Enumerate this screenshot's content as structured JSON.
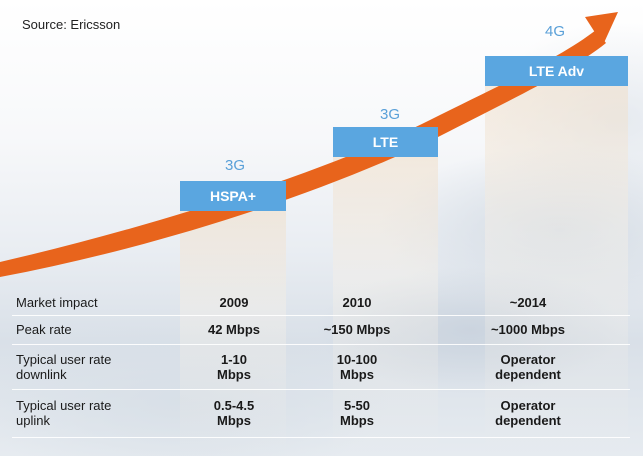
{
  "source": "Source: Ericsson",
  "stages": [
    {
      "generation": "3G",
      "technology": "HSPA+"
    },
    {
      "generation": "3G",
      "technology": "LTE"
    },
    {
      "generation": "4G",
      "technology": "LTE Adv"
    }
  ],
  "table": {
    "rows": [
      {
        "label": "Market impact",
        "values": [
          "2009",
          "2010",
          "~2014"
        ]
      },
      {
        "label": "Peak rate",
        "values": [
          "42 Mbps",
          "~150 Mbps",
          "~1000 Mbps"
        ]
      },
      {
        "label": "Typical user rate downlink",
        "values": [
          "1-10 Mbps",
          "10-100 Mbps",
          "Operator dependent"
        ]
      },
      {
        "label": "Typical user rate uplink",
        "values": [
          "0.5-4.5 Mbps",
          "5-50 Mbps",
          "Operator dependent"
        ]
      }
    ]
  },
  "colors": {
    "arrow": "#e8641c",
    "tech_box": "#5aa6e0",
    "generation_text": "#5aa0d8"
  }
}
